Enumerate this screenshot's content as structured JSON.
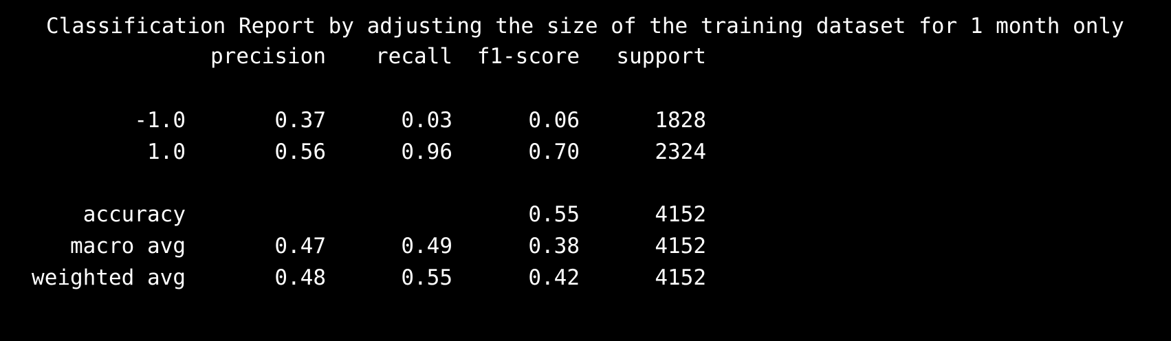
{
  "report": {
    "title": "Classification Report by adjusting the size of the training dataset for 1 month only",
    "columns": [
      "precision",
      "recall",
      "f1-score",
      "support"
    ],
    "rows": [
      {
        "label": "-1.0",
        "precision": "0.37",
        "recall": "0.03",
        "f1_score": "0.06",
        "support": "1828"
      },
      {
        "label": "1.0",
        "precision": "0.56",
        "recall": "0.96",
        "f1_score": "0.70",
        "support": "2324"
      }
    ],
    "summary": [
      {
        "label": "accuracy",
        "precision": "",
        "recall": "",
        "f1_score": "0.55",
        "support": "4152"
      },
      {
        "label": "macro avg",
        "precision": "0.47",
        "recall": "0.49",
        "f1_score": "0.38",
        "support": "4152"
      },
      {
        "label": "weighted avg",
        "precision": "0.48",
        "recall": "0.55",
        "f1_score": "0.42",
        "support": "4152"
      }
    ]
  },
  "colors": {
    "background": "#000000",
    "text": "#ffffff"
  }
}
